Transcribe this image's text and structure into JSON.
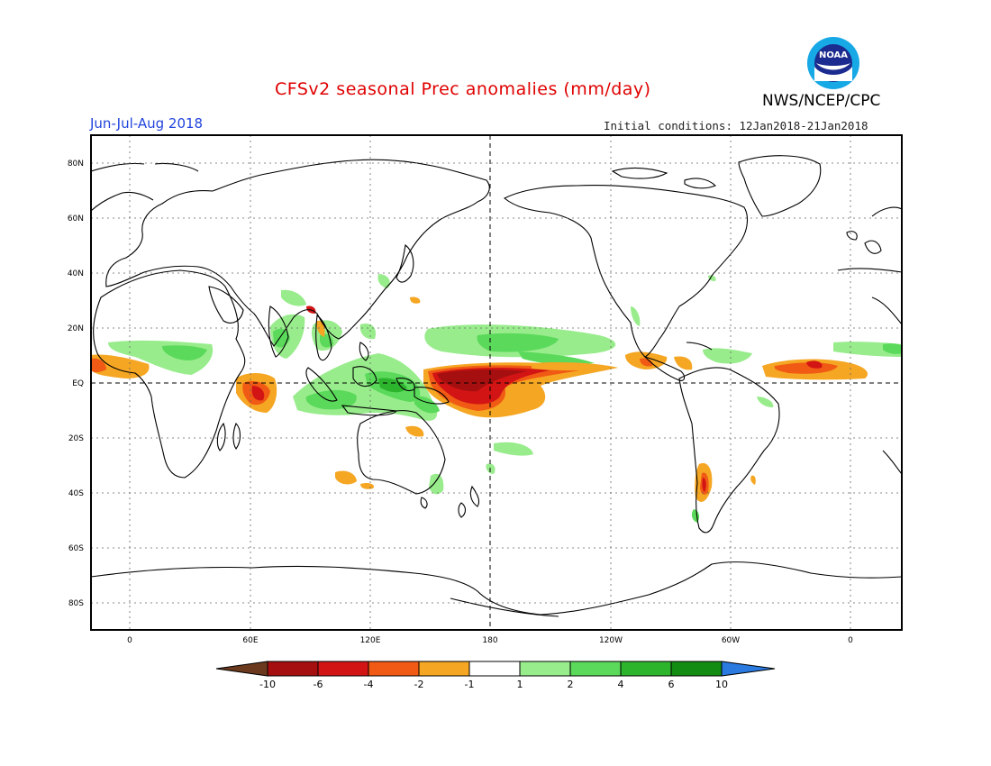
{
  "header": {
    "title": "CFSv2 seasonal Prec anomalies (mm/day)",
    "agency": "NWS/NCEP/CPC",
    "season": "Jun-Jul-Aug 2018",
    "initial_conditions": "Initial conditions: 12Jan2018-21Jan2018",
    "logo_text": "NOAA"
  },
  "map": {
    "lat_labels": [
      "80N",
      "60N",
      "40N",
      "20N",
      "EQ",
      "20S",
      "40S",
      "60S",
      "80S"
    ],
    "lon_labels": [
      "0",
      "60E",
      "120E",
      "180",
      "120W",
      "60W",
      "0"
    ],
    "grid": true
  },
  "colorbar": {
    "labels": [
      "-10",
      "-6",
      "-4",
      "-2",
      "-1",
      "1",
      "2",
      "4",
      "6",
      "10"
    ],
    "colors": [
      "#6b3a1e",
      "#a50f0f",
      "#d31414",
      "#f05a14",
      "#f5a623",
      "#ffffff",
      "#98ec8c",
      "#5ad95a",
      "#2db42d",
      "#128c12",
      "#2a7ae0"
    ]
  }
}
